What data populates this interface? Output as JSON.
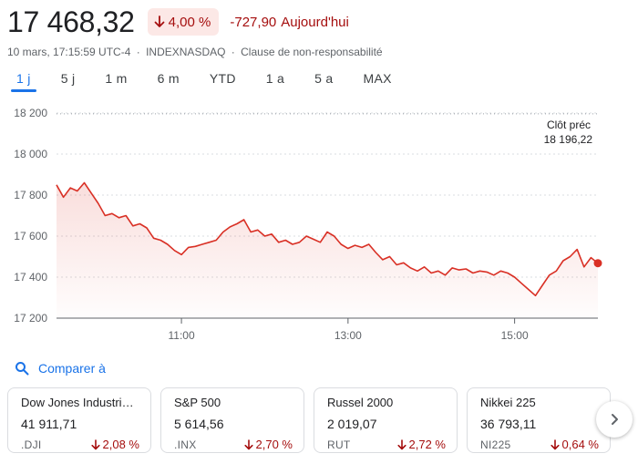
{
  "quote": {
    "price": "17 468,32",
    "pct_change": "4,00 %",
    "abs_change": "-727,90",
    "period_label": "Aujourd'hui"
  },
  "meta": {
    "timestamp": "10 mars, 17:15:59 UTC-4",
    "exchange": "INDEXNASDAQ",
    "separator": "·",
    "disclaimer": "Clause de non-responsabilité"
  },
  "ranges": [
    {
      "label": "1 j",
      "active": true
    },
    {
      "label": "5 j",
      "active": false
    },
    {
      "label": "1 m",
      "active": false
    },
    {
      "label": "6 m",
      "active": false
    },
    {
      "label": "YTD",
      "active": false
    },
    {
      "label": "1 a",
      "active": false
    },
    {
      "label": "5 a",
      "active": false
    },
    {
      "label": "MAX",
      "active": false
    }
  ],
  "chart_data": {
    "type": "line",
    "ylim": [
      17200,
      18200
    ],
    "yticks": [
      18200,
      18000,
      17800,
      17600,
      17400,
      17200
    ],
    "ytick_labels": [
      "18 200",
      "18 000",
      "17 800",
      "17 600",
      "17 400",
      "17 200"
    ],
    "xlim": [
      "09:30",
      "16:00"
    ],
    "xticks": [
      "11:00",
      "13:00",
      "15:00"
    ],
    "prev_close": {
      "label": "Clôt préc",
      "value_label": "18 196,22",
      "value": 18196.22
    },
    "series": [
      {
        "color": "#d93025",
        "x": [
          "09:30",
          "09:35",
          "09:40",
          "09:45",
          "09:50",
          "09:55",
          "10:00",
          "10:05",
          "10:10",
          "10:15",
          "10:20",
          "10:25",
          "10:30",
          "10:35",
          "10:40",
          "10:45",
          "10:50",
          "10:55",
          "11:00",
          "11:05",
          "11:10",
          "11:15",
          "11:20",
          "11:25",
          "11:30",
          "11:35",
          "11:40",
          "11:45",
          "11:50",
          "11:55",
          "12:00",
          "12:05",
          "12:10",
          "12:15",
          "12:20",
          "12:25",
          "12:30",
          "12:35",
          "12:40",
          "12:45",
          "12:50",
          "12:55",
          "13:00",
          "13:05",
          "13:10",
          "13:15",
          "13:20",
          "13:25",
          "13:30",
          "13:35",
          "13:40",
          "13:45",
          "13:50",
          "13:55",
          "14:00",
          "14:05",
          "14:10",
          "14:15",
          "14:20",
          "14:25",
          "14:30",
          "14:35",
          "14:40",
          "14:45",
          "14:50",
          "14:55",
          "15:00",
          "15:05",
          "15:10",
          "15:15",
          "15:20",
          "15:25",
          "15:30",
          "15:35",
          "15:40",
          "15:45",
          "15:50",
          "15:55",
          "16:00"
        ],
        "values": [
          17850,
          17790,
          17835,
          17820,
          17860,
          17810,
          17760,
          17700,
          17710,
          17690,
          17700,
          17650,
          17660,
          17640,
          17590,
          17580,
          17560,
          17530,
          17510,
          17545,
          17550,
          17560,
          17570,
          17580,
          17620,
          17645,
          17660,
          17680,
          17620,
          17630,
          17600,
          17610,
          17570,
          17580,
          17560,
          17570,
          17600,
          17585,
          17570,
          17620,
          17600,
          17560,
          17540,
          17555,
          17545,
          17560,
          17520,
          17485,
          17500,
          17460,
          17470,
          17445,
          17430,
          17450,
          17420,
          17430,
          17410,
          17445,
          17435,
          17440,
          17420,
          17430,
          17425,
          17410,
          17430,
          17420,
          17400,
          17370,
          17340,
          17310,
          17360,
          17410,
          17430,
          17480,
          17500,
          17535,
          17450,
          17495,
          17468
        ]
      }
    ]
  },
  "compare": {
    "label": "Comparer à"
  },
  "cards": [
    {
      "name": "Dow Jones Industrial Average",
      "value": "41 911,71",
      "ticker": ".DJI",
      "change": "2,08 %"
    },
    {
      "name": "S&P 500",
      "value": "5 614,56",
      "ticker": ".INX",
      "change": "2,70 %"
    },
    {
      "name": "Russel 2000",
      "value": "2 019,07",
      "ticker": "RUT",
      "change": "2,72 %"
    },
    {
      "name": "Nikkei 225",
      "value": "36 793,11",
      "ticker": "NI225",
      "change": "0,64 %"
    }
  ],
  "icons": {
    "down_arrow": "arrow-down-icon",
    "search": "search-icon",
    "next": "chevron-right-icon"
  },
  "colors": {
    "negative": "#a50e0e",
    "negative_bg": "#fce8e6",
    "line": "#d93025",
    "accent": "#1a73e8"
  }
}
